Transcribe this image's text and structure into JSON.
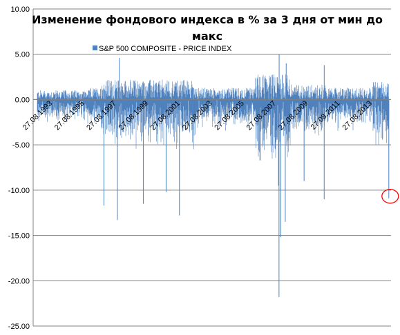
{
  "chart_data": {
    "type": "bar",
    "title_line1": "Изменение фондового индекса в % за 3 дня от мин до",
    "title_line2": "макс",
    "xlabel": "",
    "ylabel": "",
    "ylim": [
      -25,
      10
    ],
    "yticks": [
      "10.00",
      "5.00",
      "0.00",
      "-5.00",
      "-10.00",
      "-15.00",
      "-20.00",
      "-25.00"
    ],
    "ytick_values": [
      10,
      5,
      0,
      -5,
      -10,
      -15,
      -20,
      -25
    ],
    "grid": true,
    "legend": {
      "position": "top",
      "entries": [
        "S&P 500 COMPOSITE - PRICE INDEX"
      ]
    },
    "series": [
      {
        "name": "S&P 500 COMPOSITE - PRICE INDEX",
        "color": "#4f81bd"
      }
    ],
    "x_tick_labels": [
      "27.08.1993",
      "27.08.1995",
      "27.08.1997",
      "27.08.1999",
      "27.08.2001",
      "27.08.2003",
      "27.08.2005",
      "27.08.2007",
      "27.08.2009",
      "27.08.2011",
      "27.08.2013"
    ],
    "x_range": [
      "1993-08-27",
      "2015-08-27"
    ],
    "notable_points": [
      {
        "date": "1997-10-27",
        "value": -11.7
      },
      {
        "date": "1998-08-31",
        "value": -13.3
      },
      {
        "date": "2000-04-14",
        "value": -11.5
      },
      {
        "date": "2001-09-17",
        "value": -10.2
      },
      {
        "date": "2002-07-19",
        "value": -12.8
      },
      {
        "date": "2008-09-29",
        "value": -9.5
      },
      {
        "date": "2008-10-10",
        "value": -21.8
      },
      {
        "date": "2008-11-20",
        "value": -15.2
      },
      {
        "date": "2009-03-02",
        "value": -13.5
      },
      {
        "date": "2010-05-06",
        "value": -9.0
      },
      {
        "date": "2011-08-08",
        "value": -11.0
      },
      {
        "date": "2015-08-24",
        "value": -10.9
      },
      {
        "date": "1998-10-15",
        "value": 4.6
      },
      {
        "date": "2008-10-13",
        "value": 5.0
      },
      {
        "date": "2009-03-23",
        "value": 4.0
      },
      {
        "date": "2011-08-09",
        "value": 3.8
      }
    ],
    "highlight": {
      "date": "2015-08-24",
      "value": -10.9,
      "color": "#ff0000",
      "shape": "circle"
    }
  }
}
